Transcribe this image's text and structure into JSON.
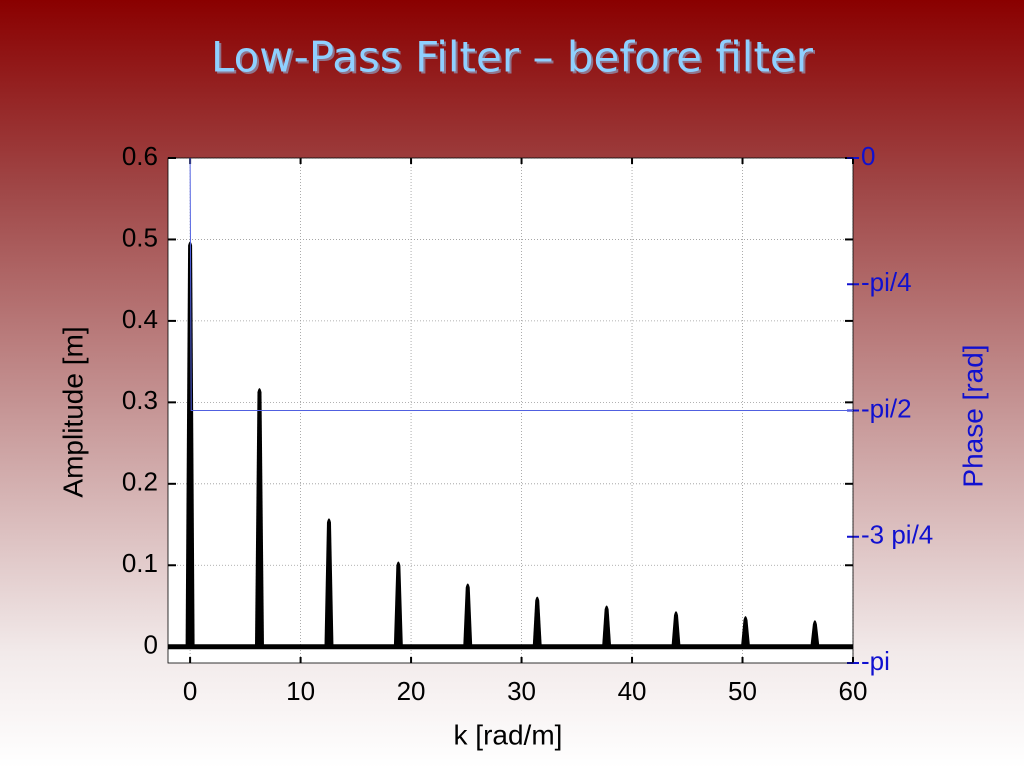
{
  "chart_data": {
    "type": "line",
    "title": "Low-Pass Filter – before filter",
    "xlabel": "k  [rad/m]",
    "ylabel": "Amplitude [m]",
    "y2label": "Phase [rad]",
    "xlim": [
      -2,
      60
    ],
    "ylim": [
      -0.02,
      0.6
    ],
    "y2lim": [
      -3.1416,
      0
    ],
    "xticks": [
      0,
      10,
      20,
      30,
      40,
      50,
      60
    ],
    "yticks": [
      0,
      0.1,
      0.2,
      0.3,
      0.4,
      0.5,
      0.6
    ],
    "y2ticks": [
      0,
      {
        "value": -0.7854,
        "label": "-pi/4"
      },
      {
        "value": -1.5708,
        "label": "-pi/2"
      },
      {
        "value": -2.3562,
        "label": "-3 pi/4"
      },
      {
        "value": -3.1416,
        "label": "-pi"
      }
    ],
    "grid": true,
    "series": [
      {
        "color": "#000000",
        "style": "stem",
        "x": [
          0,
          6.28,
          12.57,
          18.85,
          25.13,
          31.42,
          37.7,
          43.98,
          50.27,
          56.55
        ],
        "values": [
          0.5,
          0.32,
          0.16,
          0.107,
          0.08,
          0.064,
          0.053,
          0.046,
          0.04,
          0.035
        ]
      },
      {
        "color": "#5060e0",
        "style": "line",
        "axis": "y2",
        "x": [
          0,
          0.1,
          60
        ],
        "values": [
          0,
          -1.5708,
          -1.5708
        ]
      }
    ]
  }
}
